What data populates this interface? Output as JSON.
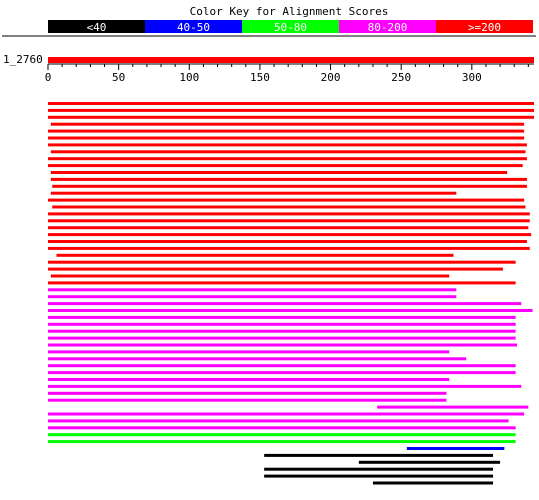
{
  "title": "Color Key for Alignment Scores",
  "color_key": [
    {
      "label": "<40",
      "color": "#000000",
      "text_color": "#ffffff"
    },
    {
      "label": "40-50",
      "color": "#0000ff",
      "text_color": "#ffffff"
    },
    {
      "label": "50-80",
      "color": "#00ff00",
      "text_color": "#ffffff"
    },
    {
      "label": "80-200",
      "color": "#ff00ff",
      "text_color": "#ffffff"
    },
    {
      "label": ">=200",
      "color": "#ff0000",
      "text_color": "#ffffff"
    }
  ],
  "query": {
    "label": "1_2760",
    "length": 344,
    "color": "#ff0000"
  },
  "axis": {
    "ticks": [
      0,
      50,
      100,
      150,
      200,
      250,
      300
    ],
    "minor_step": 10
  },
  "chart_data": {
    "type": "alignment-hits",
    "title": "Color Key for Alignment Scores",
    "query_label": "1_2760",
    "query_length": 344,
    "hits": [
      {
        "start": 0,
        "end": 344,
        "score_bin": ">=200"
      },
      {
        "start": 0,
        "end": 344,
        "score_bin": ">=200"
      },
      {
        "start": 0,
        "end": 344,
        "score_bin": ">=200"
      },
      {
        "start": 2,
        "end": 337,
        "score_bin": ">=200"
      },
      {
        "start": 0,
        "end": 337,
        "score_bin": ">=200"
      },
      {
        "start": 0,
        "end": 337,
        "score_bin": ">=200"
      },
      {
        "start": 0,
        "end": 339,
        "score_bin": ">=200"
      },
      {
        "start": 2,
        "end": 338,
        "score_bin": ">=200"
      },
      {
        "start": 0,
        "end": 339,
        "score_bin": ">=200"
      },
      {
        "start": 0,
        "end": 336,
        "score_bin": ">=200"
      },
      {
        "start": 2,
        "end": 325,
        "score_bin": ">=200"
      },
      {
        "start": 2,
        "end": 339,
        "score_bin": ">=200"
      },
      {
        "start": 3,
        "end": 339,
        "score_bin": ">=200"
      },
      {
        "start": 2,
        "end": 289,
        "score_bin": ">=200"
      },
      {
        "start": 0,
        "end": 337,
        "score_bin": ">=200"
      },
      {
        "start": 3,
        "end": 338,
        "score_bin": ">=200"
      },
      {
        "start": 0,
        "end": 341,
        "score_bin": ">=200"
      },
      {
        "start": 0,
        "end": 341,
        "score_bin": ">=200"
      },
      {
        "start": 0,
        "end": 340,
        "score_bin": ">=200"
      },
      {
        "start": 0,
        "end": 342,
        "score_bin": ">=200"
      },
      {
        "start": 0,
        "end": 339,
        "score_bin": ">=200"
      },
      {
        "start": 0,
        "end": 341,
        "score_bin": ">=200"
      },
      {
        "start": 6,
        "end": 287,
        "score_bin": ">=200"
      },
      {
        "start": 0,
        "end": 331,
        "score_bin": ">=200"
      },
      {
        "start": 0,
        "end": 322,
        "score_bin": ">=200"
      },
      {
        "start": 2,
        "end": 284,
        "score_bin": ">=200"
      },
      {
        "start": 0,
        "end": 331,
        "score_bin": ">=200"
      },
      {
        "start": 0,
        "end": 289,
        "score_bin": "80-200"
      },
      {
        "start": 0,
        "end": 289,
        "score_bin": "80-200"
      },
      {
        "start": 0,
        "end": 335,
        "score_bin": "80-200"
      },
      {
        "start": 0,
        "end": 343,
        "score_bin": "80-200"
      },
      {
        "start": 0,
        "end": 331,
        "score_bin": "80-200"
      },
      {
        "start": 0,
        "end": 331,
        "score_bin": "80-200"
      },
      {
        "start": 0,
        "end": 331,
        "score_bin": "80-200"
      },
      {
        "start": 0,
        "end": 331,
        "score_bin": "80-200"
      },
      {
        "start": 0,
        "end": 332,
        "score_bin": "80-200"
      },
      {
        "start": 0,
        "end": 284,
        "score_bin": "80-200"
      },
      {
        "start": 0,
        "end": 296,
        "score_bin": "80-200"
      },
      {
        "start": 0,
        "end": 331,
        "score_bin": "80-200"
      },
      {
        "start": 0,
        "end": 331,
        "score_bin": "80-200"
      },
      {
        "start": 0,
        "end": 284,
        "score_bin": "80-200"
      },
      {
        "start": 0,
        "end": 335,
        "score_bin": "80-200"
      },
      {
        "start": 0,
        "end": 282,
        "score_bin": "80-200"
      },
      {
        "start": 0,
        "end": 282,
        "score_bin": "80-200"
      },
      {
        "start": 233,
        "end": 340,
        "score_bin": "80-200"
      },
      {
        "start": 0,
        "end": 337,
        "score_bin": "80-200"
      },
      {
        "start": 0,
        "end": 326,
        "score_bin": "80-200"
      },
      {
        "start": 0,
        "end": 331,
        "score_bin": "80-200"
      },
      {
        "start": 0,
        "end": 331,
        "score_bin": "50-80"
      },
      {
        "start": 0,
        "end": 331,
        "score_bin": "50-80"
      },
      {
        "start": 254,
        "end": 323,
        "score_bin": "40-50"
      },
      {
        "start": 153,
        "end": 315,
        "score_bin": "<40"
      },
      {
        "start": 220,
        "end": 320,
        "score_bin": "<40"
      },
      {
        "start": 153,
        "end": 315,
        "score_bin": "<40"
      },
      {
        "start": 153,
        "end": 315,
        "score_bin": "<40"
      },
      {
        "start": 230,
        "end": 315,
        "score_bin": "<40"
      }
    ]
  }
}
